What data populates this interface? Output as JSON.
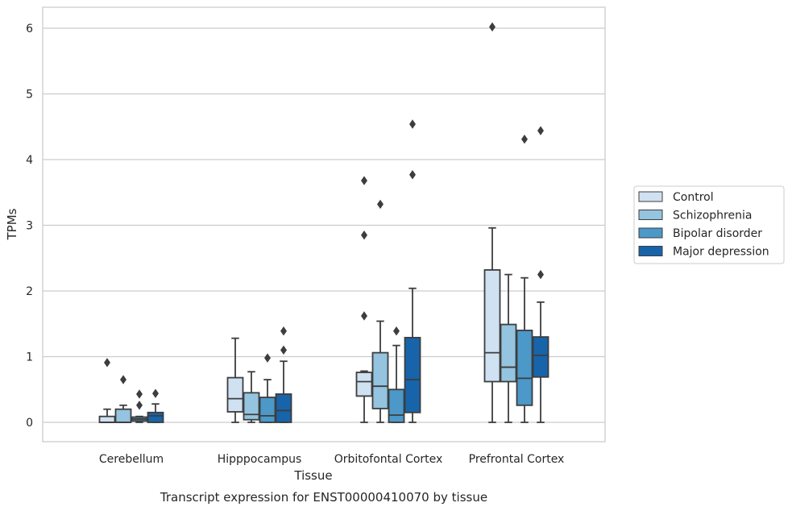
{
  "caption": "Transcript expression for ENST00000410070 by tissue",
  "chart_data": {
    "type": "box",
    "xlabel": "Tissue",
    "ylabel": "TPMs",
    "ylim": [
      -0.3,
      6.3
    ],
    "yticks": [
      "0",
      "1",
      "2",
      "3",
      "4",
      "5",
      "6"
    ],
    "grid": true,
    "legend_position": "right",
    "categories": [
      "Cerebellum",
      "Hipppocampus",
      "Orbitofontal Cortex",
      "Prefrontal Cortex"
    ],
    "series": [
      {
        "name": "Control",
        "color": "#d0e1f2",
        "boxes": [
          {
            "whislo": 0.0,
            "q1": 0.0,
            "med": 0.0,
            "q3": 0.09,
            "whishi": 0.2,
            "fliers": [
              0.91
            ]
          },
          {
            "whislo": 0.0,
            "q1": 0.16,
            "med": 0.36,
            "q3": 0.68,
            "whishi": 1.28,
            "fliers": []
          },
          {
            "whislo": 0.0,
            "q1": 0.4,
            "med": 0.62,
            "q3": 0.76,
            "whishi": 0.78,
            "fliers": [
              1.62,
              2.85,
              3.68
            ]
          },
          {
            "whislo": 0.0,
            "q1": 0.62,
            "med": 1.06,
            "q3": 2.32,
            "whishi": 2.96,
            "fliers": [
              6.02
            ]
          }
        ]
      },
      {
        "name": "Schizophrenia",
        "color": "#94c4df",
        "boxes": [
          {
            "whislo": 0.0,
            "q1": 0.0,
            "med": 0.0,
            "q3": 0.2,
            "whishi": 0.26,
            "fliers": [
              0.65
            ]
          },
          {
            "whislo": 0.0,
            "q1": 0.04,
            "med": 0.12,
            "q3": 0.45,
            "whishi": 0.77,
            "fliers": []
          },
          {
            "whislo": 0.0,
            "q1": 0.21,
            "med": 0.55,
            "q3": 1.06,
            "whishi": 1.54,
            "fliers": [
              3.32
            ]
          },
          {
            "whislo": 0.0,
            "q1": 0.62,
            "med": 0.84,
            "q3": 1.49,
            "whishi": 2.25,
            "fliers": []
          }
        ]
      },
      {
        "name": "Bipolar disorder",
        "color": "#4b98c9",
        "boxes": [
          {
            "whislo": 0.0,
            "q1": 0.02,
            "med": 0.05,
            "q3": 0.08,
            "whishi": 0.09,
            "fliers": [
              0.26,
              0.43
            ]
          },
          {
            "whislo": 0.0,
            "q1": 0.0,
            "med": 0.1,
            "q3": 0.38,
            "whishi": 0.65,
            "fliers": [
              0.98
            ]
          },
          {
            "whislo": 0.0,
            "q1": 0.0,
            "med": 0.11,
            "q3": 0.5,
            "whishi": 1.17,
            "fliers": [
              1.39
            ]
          },
          {
            "whislo": 0.0,
            "q1": 0.26,
            "med": 0.67,
            "q3": 1.4,
            "whishi": 2.2,
            "fliers": [
              4.31
            ]
          }
        ]
      },
      {
        "name": "Major depression",
        "color": "#1764ab",
        "boxes": [
          {
            "whislo": 0.0,
            "q1": 0.0,
            "med": 0.1,
            "q3": 0.15,
            "whishi": 0.28,
            "fliers": [
              0.44
            ]
          },
          {
            "whislo": 0.0,
            "q1": 0.0,
            "med": 0.18,
            "q3": 0.43,
            "whishi": 0.93,
            "fliers": [
              1.1,
              1.39
            ]
          },
          {
            "whislo": 0.0,
            "q1": 0.15,
            "med": 0.65,
            "q3": 1.29,
            "whishi": 2.04,
            "fliers": [
              3.77,
              4.54
            ]
          },
          {
            "whislo": 0.0,
            "q1": 0.69,
            "med": 1.02,
            "q3": 1.3,
            "whishi": 1.83,
            "fliers": [
              2.25,
              4.44
            ]
          }
        ]
      }
    ]
  }
}
